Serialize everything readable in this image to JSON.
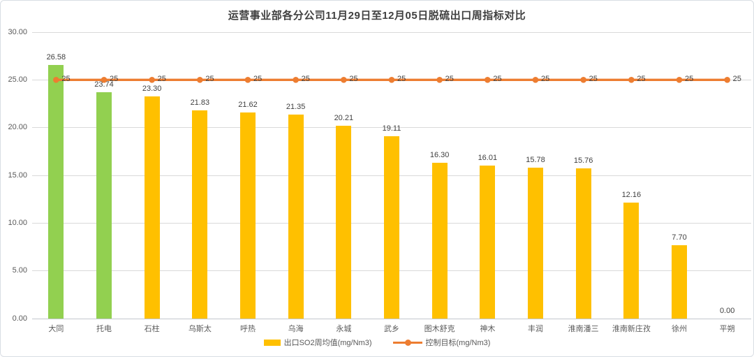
{
  "chart_data": {
    "type": "bar",
    "title": "运营事业部各分公司11月29日至12月05日脱硫出口周指标对比",
    "categories": [
      "大同",
      "托电",
      "石柱",
      "乌斯太",
      "呼热",
      "乌海",
      "永城",
      "武乡",
      "图木舒克",
      "神木",
      "丰润",
      "淮南潘三",
      "淮南新庄孜",
      "徐州",
      "平朔"
    ],
    "series": [
      {
        "name": "出口SO2周均值(mg/Nm3)",
        "type": "bar",
        "values": [
          26.58,
          23.74,
          23.3,
          21.83,
          21.62,
          21.35,
          20.21,
          19.11,
          16.3,
          16.01,
          15.78,
          15.76,
          12.16,
          7.7,
          0.0
        ],
        "data_labels": [
          "26.58",
          "23.74",
          "23.30",
          "21.83",
          "21.62",
          "21.35",
          "20.21",
          "19.11",
          "16.30",
          "16.01",
          "15.78",
          "15.76",
          "12.16",
          "7.70",
          "0.00"
        ],
        "color_default": "#FFC000",
        "color_highlight": "#92D050",
        "highlight_indices": [
          0,
          1
        ]
      },
      {
        "name": "控制目标(mg/Nm3)",
        "type": "line",
        "values": [
          25,
          25,
          25,
          25,
          25,
          25,
          25,
          25,
          25,
          25,
          25,
          25,
          25,
          25,
          25
        ],
        "data_labels": [
          "25",
          "25",
          "25",
          "25",
          "25",
          "25",
          "25",
          "25",
          "25",
          "25",
          "25",
          "25",
          "25",
          "25",
          "25"
        ],
        "color": "#ED7D31"
      }
    ],
    "ylim": [
      0,
      30
    ],
    "yticks": [
      {
        "value": 0,
        "label": "0.00"
      },
      {
        "value": 5,
        "label": "5.00"
      },
      {
        "value": 10,
        "label": "10.00"
      },
      {
        "value": 15,
        "label": "15.00"
      },
      {
        "value": 20,
        "label": "20.00"
      },
      {
        "value": 25,
        "label": "25.00"
      },
      {
        "value": 30,
        "label": "30.00"
      }
    ],
    "grid": true,
    "legend_position": "bottom"
  }
}
